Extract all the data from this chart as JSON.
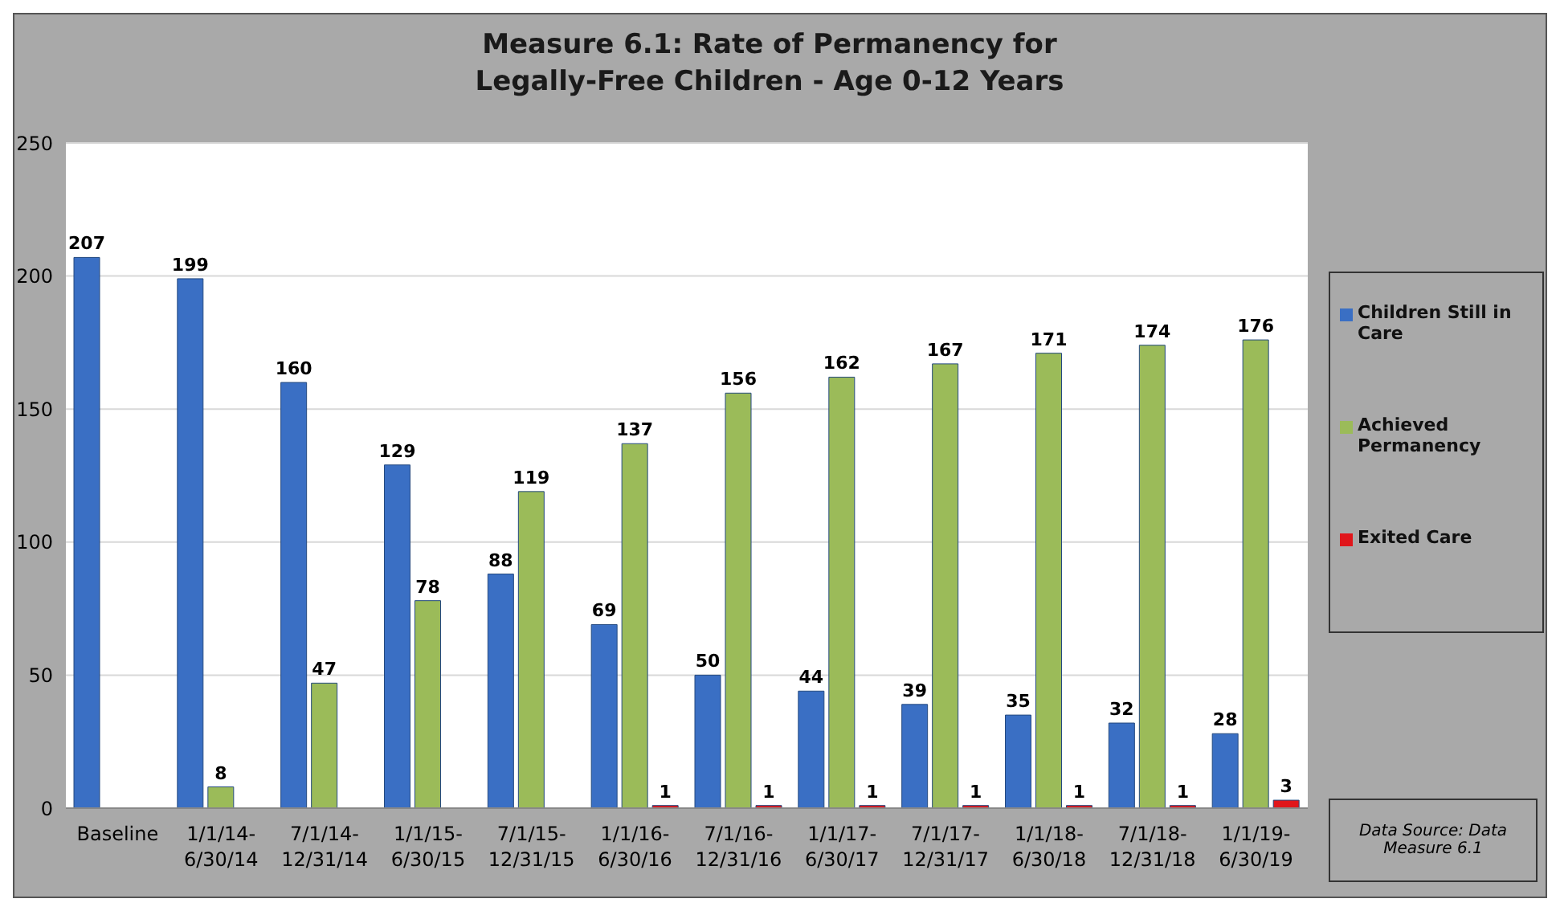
{
  "chart_data": {
    "type": "bar",
    "title": "Measure 6.1: Rate of Permanency for Legally-Free Children - Age 0-12 Years",
    "categories": [
      "Baseline",
      "1/1/14-6/30/14",
      "7/1/14-12/31/14",
      "1/1/15-6/30/15",
      "7/1/15-12/31/15",
      "1/1/16-6/30/16",
      "7/1/16-12/31/16",
      "1/1/17-6/30/17",
      "7/1/17-12/31/17",
      "1/1/18-6/30/18",
      "7/1/18-12/31/18",
      "1/1/19-6/30/19"
    ],
    "series": [
      {
        "name": "Children Still in Care",
        "color": "#3a6fc4",
        "values": [
          207,
          199,
          160,
          129,
          88,
          69,
          50,
          44,
          39,
          35,
          32,
          28
        ]
      },
      {
        "name": "Achieved Permanency",
        "color": "#9bbb59",
        "values": [
          null,
          8,
          47,
          78,
          119,
          137,
          156,
          162,
          167,
          171,
          174,
          176
        ]
      },
      {
        "name": "Exited Care",
        "color": "#e0161b",
        "values": [
          null,
          null,
          null,
          null,
          null,
          1,
          1,
          1,
          1,
          1,
          1,
          3
        ]
      }
    ],
    "ylim": [
      0,
      250
    ],
    "yticks": [
      0,
      50,
      100,
      150,
      200,
      250
    ],
    "grid": "y",
    "legend": "right",
    "data_labels": true,
    "annotations": [
      "Data Source:   Data Measure 6.1"
    ]
  }
}
